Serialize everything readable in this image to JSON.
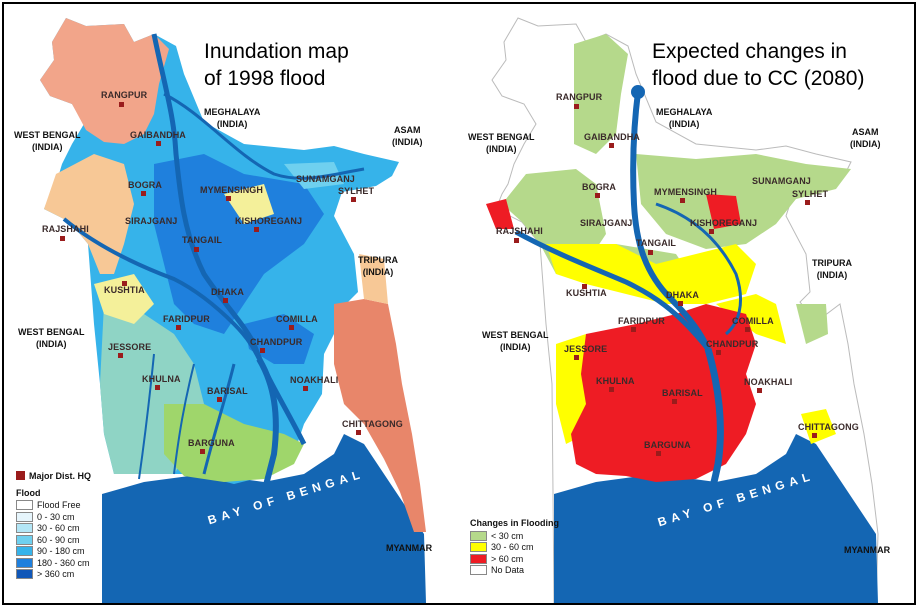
{
  "left_map": {
    "title_line1": "Inundation map",
    "title_line2": "of 1998 flood",
    "regions": {
      "meghalaya": "MEGHALAYA",
      "meghalaya_sub": "(INDIA)",
      "asam": "ASAM",
      "asam_sub": "(INDIA)",
      "west_bengal_top": "WEST BENGAL",
      "west_bengal_top_sub": "(INDIA)",
      "west_bengal_mid": "WEST BENGAL",
      "west_bengal_mid_sub": "(INDIA)",
      "tripura": "TRIPURA",
      "tripura_sub": "(INDIA)",
      "myanmar": "MYANMAR"
    },
    "cities": {
      "rangpur": "RANGPUR",
      "gaibandha": "GAIBANDHA",
      "bogra": "BOGRA",
      "mymensingh": "MYMENSINGH",
      "sunamganj": "SUNAMGANJ",
      "sylhet": "SYLHET",
      "sirajganj": "SIRAJGANJ",
      "kishoreganj": "KISHOREGANJ",
      "rajshahi": "RAJSHAHI",
      "tangail": "TANGAIL",
      "kushtia": "KUSHTIA",
      "dhaka": "DHAKA",
      "faridpur": "FARIDPUR",
      "comilla": "COMILLA",
      "jessore": "JESSORE",
      "chandpur": "CHANDPUR",
      "khulna": "KHULNA",
      "barisal": "BARISAL",
      "noakhali": "NOAKHALI",
      "chittagong": "CHITTAGONG",
      "barguna": "BARGUNA"
    },
    "bay_label": "BAY OF BENGAL",
    "legend": {
      "hq_label": "Major Dist. HQ",
      "hq_color": "#9a1c1c",
      "flood_title": "Flood",
      "items": [
        {
          "label": "Flood Free",
          "color": "#ffffff"
        },
        {
          "label": "0 - 30 cm",
          "color": "#e6f5fc"
        },
        {
          "label": "30 - 60 cm",
          "color": "#b3e6f6"
        },
        {
          "label": "60 - 90 cm",
          "color": "#6fd0ef"
        },
        {
          "label": "90 - 180 cm",
          "color": "#36b3ea"
        },
        {
          "label": "180 - 360 cm",
          "color": "#1f80dd"
        },
        {
          "label": "> 360 cm",
          "color": "#1057b8"
        }
      ]
    }
  },
  "right_map": {
    "title_line1": "Expected changes in",
    "title_line2": "flood due to CC (2080)",
    "regions": {
      "meghalaya": "MEGHALAYA",
      "meghalaya_sub": "(INDIA)",
      "asam": "ASAM",
      "asam_sub": "(INDIA)",
      "west_bengal_top": "WEST BENGAL",
      "west_bengal_top_sub": "(INDIA)",
      "west_bengal_mid": "WEST BENGAL",
      "west_bengal_mid_sub": "(INDIA)",
      "tripura": "TRIPURA",
      "tripura_sub": "(INDIA)",
      "myanmar": "MYANMAR"
    },
    "cities": {
      "rangpur": "RANGPUR",
      "gaibandha": "GAIBANDHA",
      "bogra": "BOGRA",
      "mymensingh": "MYMENSINGH",
      "sunamganj": "SUNAMGANJ",
      "sylhet": "SYLHET",
      "sirajganj": "SIRAJGANJ",
      "kishoreganj": "KISHOREGANJ",
      "rajshahi": "RAJSHAHI",
      "tangail": "TANGAIL",
      "kushtia": "KUSHTIA",
      "dhaka": "DHAKA",
      "faridpur": "FARIDPUR",
      "comilla": "COMILLA",
      "jessore": "JESSORE",
      "chandpur": "CHANDPUR",
      "khulna": "KHULNA",
      "barisal": "BARISAL",
      "noakhali": "NOAKHALI",
      "chittagong": "CHITTAGONG",
      "barguna": "BARGUNA"
    },
    "bay_label": "BAY OF BENGAL",
    "legend": {
      "title": "Changes in Flooding",
      "items": [
        {
          "label": "< 30 cm",
          "color": "#b5d98b"
        },
        {
          "label": "30 - 60 cm",
          "color": "#ffff00"
        },
        {
          "label": "> 60 cm",
          "color": "#ee1c24"
        },
        {
          "label": "No Data",
          "color": "#ffffff"
        }
      ]
    }
  },
  "colors": {
    "sea": "#1466b3",
    "river": "#1466b3",
    "hill": "#e8866a",
    "north": "#f2a58a"
  }
}
